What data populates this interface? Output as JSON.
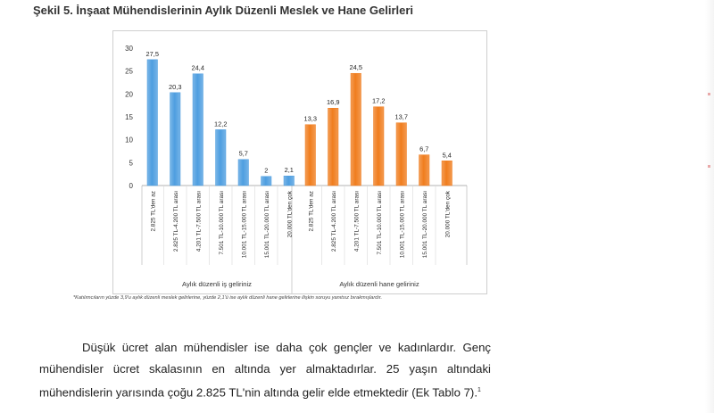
{
  "figure": {
    "title": "Şekil 5. İnşaat Mühendislerinin Aylık Düzenli Meslek ve Hane Gelirleri",
    "footnote": "*Katılımcıların yüzde 3,9'u aylık düzenli meslek gelirlerine, yüzde 2,1'ü ise aylık düzenli hane gelirlerine ilişkin soruyu yanıtsız bırakmışlardır."
  },
  "chart_data": {
    "type": "bar",
    "ylim": [
      0,
      30
    ],
    "yticks": [
      0,
      5,
      10,
      15,
      20,
      25,
      30
    ],
    "grid": false,
    "legend": "none",
    "groups": [
      {
        "label": "Aylık düzenli iş geliriniz",
        "color": "#4e9ee0",
        "categories": [
          "2.825 TL'den az",
          "2.825 TL-4.200 TL arası",
          "4.201 TL-7.500 TL arası",
          "7.501 TL-10.000 TL arası",
          "10.001 TL-15.000 TL arası",
          "15.001 TL-20.000 TL arası",
          "20.000 TL'den çok"
        ],
        "values": [
          27.5,
          20.3,
          24.4,
          12.2,
          5.7,
          2,
          2.1
        ],
        "value_labels": [
          "27,5",
          "20,3",
          "24,4",
          "12,2",
          "5,7",
          "2",
          "2,1"
        ]
      },
      {
        "label": "Aylık düzenli hane geliriniz",
        "color": "#f07d1e",
        "categories": [
          "2.825 TL'den az",
          "2.825 TL-4.200 TL arası",
          "4.201 TL-7.500 TL arası",
          "7.501 TL-10.000 TL arası",
          "10.001 TL-15.000 TL arası",
          "15.001 TL-20.000 TL arası",
          "20.000 TL'den çok"
        ],
        "values": [
          13.3,
          16.9,
          24.5,
          17.2,
          13.7,
          6.7,
          5.4
        ],
        "value_labels": [
          "13,3",
          "16,9",
          "24,5",
          "17,2",
          "13,7",
          "6,7",
          "5,4"
        ]
      }
    ]
  },
  "body": {
    "paragraph": "Düşük ücret alan mühendisler ise daha çok gençler ve kadınlardır. Genç mühendisler ücret skalasının en altında yer almaktadırlar. 25 yaşın altındaki mühendislerin yarısında çoğu 2.825 TL'nin altında gelir elde etmektedir (Ek Tablo 7).",
    "footnote_ref": "1"
  }
}
